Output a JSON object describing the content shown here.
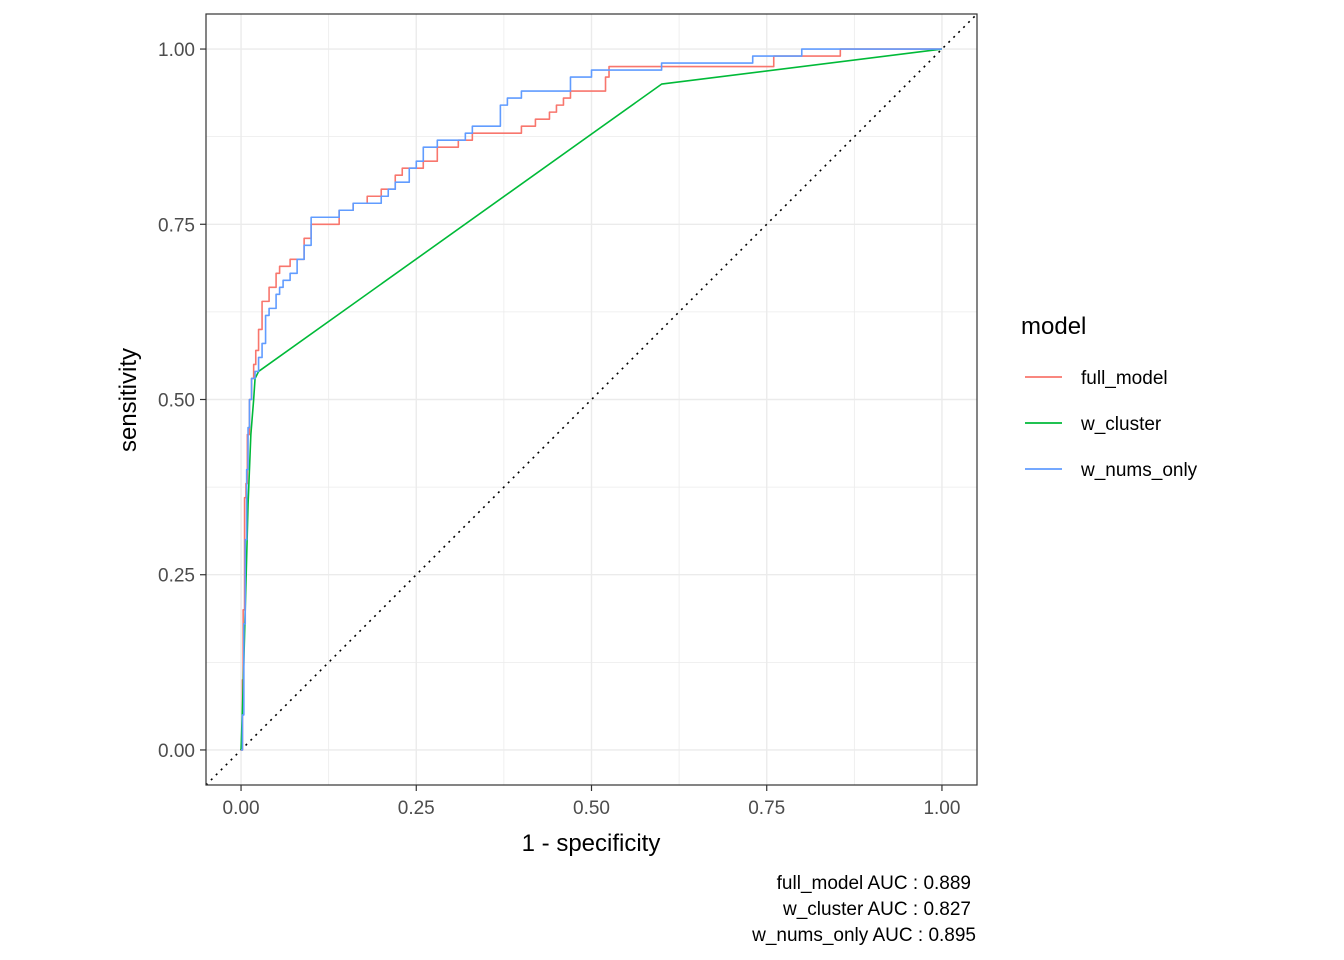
{
  "chart_data": {
    "type": "line",
    "xlabel": "1 - specificity",
    "ylabel": "sensitivity",
    "xlim": [
      -0.05,
      1.05
    ],
    "ylim": [
      -0.05,
      1.05
    ],
    "x_ticks": [
      0.0,
      0.25,
      0.5,
      0.75,
      1.0
    ],
    "x_tick_labels": [
      "0.00",
      "0.25",
      "0.50",
      "0.75",
      "1.00"
    ],
    "y_ticks": [
      0.0,
      0.25,
      0.5,
      0.75,
      1.0
    ],
    "y_tick_labels": [
      "0.00",
      "0.25",
      "0.50",
      "0.75",
      "1.00"
    ],
    "grid": true,
    "reference_line": {
      "from": [
        0,
        0
      ],
      "to": [
        1,
        1
      ],
      "style": "dotted",
      "color": "#000000"
    },
    "legend": {
      "title": "model",
      "position": "right"
    },
    "series": [
      {
        "name": "full_model",
        "color": "#F8766D",
        "step": true,
        "x": [
          0.0,
          0.002,
          0.003,
          0.005,
          0.007,
          0.009,
          0.012,
          0.015,
          0.018,
          0.021,
          0.025,
          0.03,
          0.035,
          0.04,
          0.05,
          0.055,
          0.06,
          0.07,
          0.075,
          0.08,
          0.09,
          0.1,
          0.11,
          0.12,
          0.14,
          0.15,
          0.16,
          0.17,
          0.18,
          0.2,
          0.22,
          0.23,
          0.24,
          0.26,
          0.28,
          0.29,
          0.31,
          0.33,
          0.35,
          0.37,
          0.4,
          0.42,
          0.44,
          0.45,
          0.46,
          0.47,
          0.5,
          0.52,
          0.525,
          0.6,
          0.63,
          0.76,
          0.8,
          0.855,
          1.0
        ],
        "y": [
          0.0,
          0.1,
          0.2,
          0.36,
          0.38,
          0.45,
          0.5,
          0.53,
          0.55,
          0.57,
          0.6,
          0.64,
          0.64,
          0.66,
          0.68,
          0.69,
          0.69,
          0.7,
          0.7,
          0.7,
          0.73,
          0.75,
          0.75,
          0.75,
          0.77,
          0.77,
          0.78,
          0.78,
          0.79,
          0.8,
          0.82,
          0.83,
          0.83,
          0.84,
          0.86,
          0.86,
          0.87,
          0.88,
          0.88,
          0.88,
          0.89,
          0.9,
          0.91,
          0.92,
          0.93,
          0.94,
          0.94,
          0.96,
          0.975,
          0.975,
          0.975,
          0.99,
          0.99,
          1.0,
          1.0
        ]
      },
      {
        "name": "w_cluster",
        "color": "#00BA38",
        "step": false,
        "x": [
          0.0,
          0.003,
          0.006,
          0.01,
          0.014,
          0.018,
          0.02,
          0.025,
          0.6,
          1.0
        ],
        "y": [
          0.0,
          0.09,
          0.2,
          0.35,
          0.45,
          0.5,
          0.53,
          0.54,
          0.95,
          1.0
        ]
      },
      {
        "name": "w_nums_only",
        "color": "#619CFF",
        "step": true,
        "x": [
          0.0,
          0.002,
          0.004,
          0.006,
          0.008,
          0.01,
          0.012,
          0.015,
          0.02,
          0.025,
          0.03,
          0.035,
          0.04,
          0.05,
          0.055,
          0.06,
          0.07,
          0.08,
          0.09,
          0.1,
          0.12,
          0.14,
          0.16,
          0.18,
          0.2,
          0.21,
          0.22,
          0.24,
          0.25,
          0.26,
          0.28,
          0.31,
          0.32,
          0.33,
          0.37,
          0.38,
          0.4,
          0.47,
          0.5,
          0.57,
          0.6,
          0.63,
          0.73,
          0.76,
          0.8,
          0.81,
          1.0
        ],
        "y": [
          0.0,
          0.05,
          0.18,
          0.3,
          0.4,
          0.46,
          0.5,
          0.53,
          0.54,
          0.56,
          0.58,
          0.62,
          0.63,
          0.65,
          0.66,
          0.67,
          0.68,
          0.7,
          0.72,
          0.76,
          0.76,
          0.77,
          0.78,
          0.78,
          0.79,
          0.8,
          0.81,
          0.83,
          0.84,
          0.86,
          0.87,
          0.87,
          0.88,
          0.89,
          0.92,
          0.93,
          0.94,
          0.96,
          0.97,
          0.97,
          0.98,
          0.98,
          0.99,
          0.99,
          1.0,
          1.0,
          1.0
        ]
      }
    ],
    "caption": [
      "full_model AUC : 0.889",
      "w_cluster AUC : 0.827",
      "w_nums_only AUC : 0.895"
    ]
  }
}
